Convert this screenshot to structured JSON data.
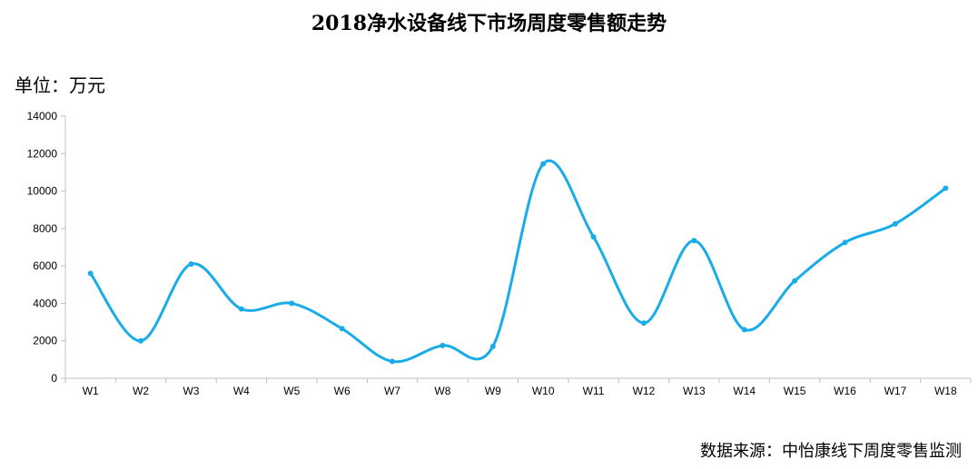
{
  "title": "2018净水设备线下市场周度零售额走势",
  "unit_label": "单位：万元",
  "source": "数据来源：中怡康线下周度零售监测",
  "colors": {
    "line": "#1aace8",
    "axis": "#bfbfbf"
  },
  "chart_data": {
    "type": "line",
    "title": "2018净水设备线下市场周度零售额走势",
    "xlabel": "",
    "ylabel": "",
    "categories": [
      "W1",
      "W2",
      "W3",
      "W4",
      "W5",
      "W6",
      "W7",
      "W8",
      "W9",
      "W10",
      "W11",
      "W12",
      "W13",
      "W14",
      "W15",
      "W16",
      "W17",
      "W18"
    ],
    "series": [
      {
        "values": [
          5600,
          2000,
          6100,
          3700,
          4000,
          2650,
          900,
          1750,
          1700,
          11450,
          7550,
          2950,
          7350,
          2600,
          5200,
          7250,
          8250,
          10150
        ]
      }
    ],
    "ylim": [
      0,
      14000
    ],
    "yticks": [
      0,
      2000,
      4000,
      6000,
      8000,
      10000,
      12000,
      14000
    ],
    "grid": false,
    "smooth": true
  }
}
